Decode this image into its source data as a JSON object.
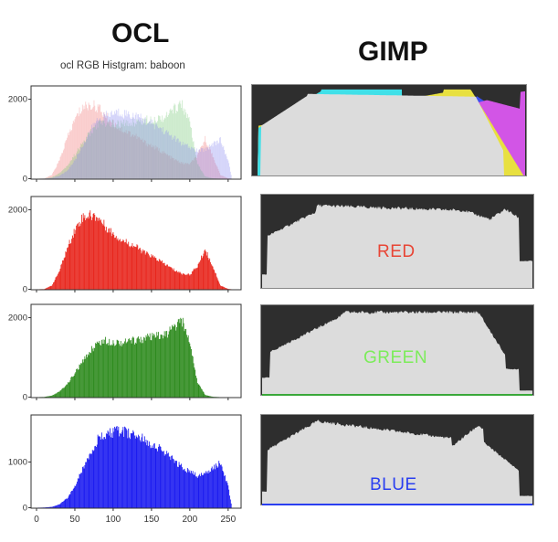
{
  "headings": {
    "ocl": "OCL",
    "gimp": "GIMP"
  },
  "colors": {
    "red": "#e8251c",
    "green": "#2e8b1e",
    "blue": "#1a1af0",
    "red_label": "#e84535",
    "green_label": "#7cec5a",
    "blue_label": "#2a3ff0",
    "gimp_bg": "#2e2e2e",
    "gimp_fill": "#dcdcdc"
  },
  "gimp_labels": {
    "red": "RED",
    "green": "GREEN",
    "blue": "BLUE"
  },
  "chart_data": [
    {
      "type": "area",
      "panel": "ocl-combined",
      "title": "ocl RGB Histgram: baboon",
      "xlim": [
        0,
        255
      ],
      "ylim": [
        0,
        2300
      ],
      "yticks": [
        0,
        2000
      ],
      "series": [
        {
          "channel": "red",
          "x": [
            0,
            10,
            20,
            30,
            40,
            50,
            60,
            70,
            80,
            90,
            100,
            110,
            120,
            130,
            140,
            150,
            160,
            170,
            180,
            190,
            200,
            210,
            220,
            230,
            240,
            250,
            255
          ],
          "values": [
            0,
            5,
            100,
            500,
            1100,
            1600,
            1950,
            2000,
            1950,
            1700,
            1500,
            1350,
            1250,
            1150,
            1000,
            900,
            780,
            650,
            520,
            420,
            400,
            620,
            1080,
            620,
            100,
            10,
            0
          ]
        },
        {
          "channel": "green",
          "x": [
            0,
            10,
            20,
            30,
            40,
            50,
            60,
            70,
            80,
            90,
            100,
            110,
            120,
            130,
            140,
            150,
            160,
            170,
            180,
            190,
            200,
            210,
            220,
            230,
            240,
            250,
            255
          ],
          "values": [
            0,
            5,
            40,
            150,
            350,
            650,
            950,
            1250,
            1480,
            1520,
            1500,
            1480,
            1500,
            1550,
            1580,
            1620,
            1650,
            1700,
            1900,
            2050,
            1500,
            400,
            60,
            10,
            0,
            0,
            0
          ]
        },
        {
          "channel": "blue",
          "x": [
            0,
            10,
            20,
            30,
            40,
            50,
            60,
            70,
            80,
            90,
            100,
            110,
            120,
            130,
            140,
            150,
            160,
            170,
            180,
            190,
            200,
            210,
            220,
            230,
            240,
            250,
            255
          ],
          "values": [
            0,
            5,
            20,
            80,
            220,
            500,
            900,
            1300,
            1600,
            1700,
            1780,
            1800,
            1750,
            1700,
            1600,
            1500,
            1400,
            1250,
            1100,
            950,
            850,
            750,
            800,
            950,
            1050,
            500,
            0
          ]
        }
      ]
    },
    {
      "type": "bar",
      "panel": "ocl-red",
      "xlim": [
        0,
        255
      ],
      "ylim": [
        0,
        2300
      ],
      "yticks": [
        0,
        2000
      ],
      "x": [
        0,
        10,
        20,
        30,
        40,
        50,
        60,
        70,
        80,
        90,
        100,
        110,
        120,
        130,
        140,
        150,
        160,
        170,
        180,
        190,
        200,
        210,
        220,
        230,
        240,
        250,
        255
      ],
      "values": [
        0,
        5,
        100,
        500,
        1100,
        1600,
        1950,
        2000,
        1950,
        1700,
        1500,
        1350,
        1250,
        1150,
        1000,
        900,
        780,
        650,
        520,
        420,
        400,
        620,
        1080,
        620,
        100,
        10,
        0
      ]
    },
    {
      "type": "bar",
      "panel": "ocl-green",
      "xlim": [
        0,
        255
      ],
      "ylim": [
        0,
        2300
      ],
      "yticks": [
        0,
        2000
      ],
      "x": [
        0,
        10,
        20,
        30,
        40,
        50,
        60,
        70,
        80,
        90,
        100,
        110,
        120,
        130,
        140,
        150,
        160,
        170,
        180,
        190,
        200,
        210,
        220,
        230,
        240,
        250,
        255
      ],
      "values": [
        0,
        5,
        40,
        150,
        350,
        650,
        950,
        1250,
        1480,
        1520,
        1500,
        1480,
        1500,
        1550,
        1580,
        1620,
        1650,
        1700,
        1900,
        2050,
        1500,
        400,
        60,
        10,
        0,
        0,
        0
      ]
    },
    {
      "type": "bar",
      "panel": "ocl-blue",
      "xlim": [
        0,
        255
      ],
      "ylim": [
        0,
        2000
      ],
      "yticks": [
        0,
        1000
      ],
      "xticks": [
        0,
        50,
        100,
        150,
        200,
        250
      ],
      "x": [
        0,
        10,
        20,
        30,
        40,
        50,
        60,
        70,
        80,
        90,
        100,
        110,
        120,
        130,
        140,
        150,
        160,
        170,
        180,
        190,
        200,
        210,
        220,
        230,
        240,
        250,
        255
      ],
      "values": [
        0,
        5,
        20,
        80,
        220,
        500,
        900,
        1300,
        1600,
        1700,
        1780,
        1800,
        1750,
        1700,
        1600,
        1500,
        1400,
        1250,
        1100,
        950,
        850,
        750,
        800,
        950,
        1050,
        500,
        0
      ]
    }
  ]
}
